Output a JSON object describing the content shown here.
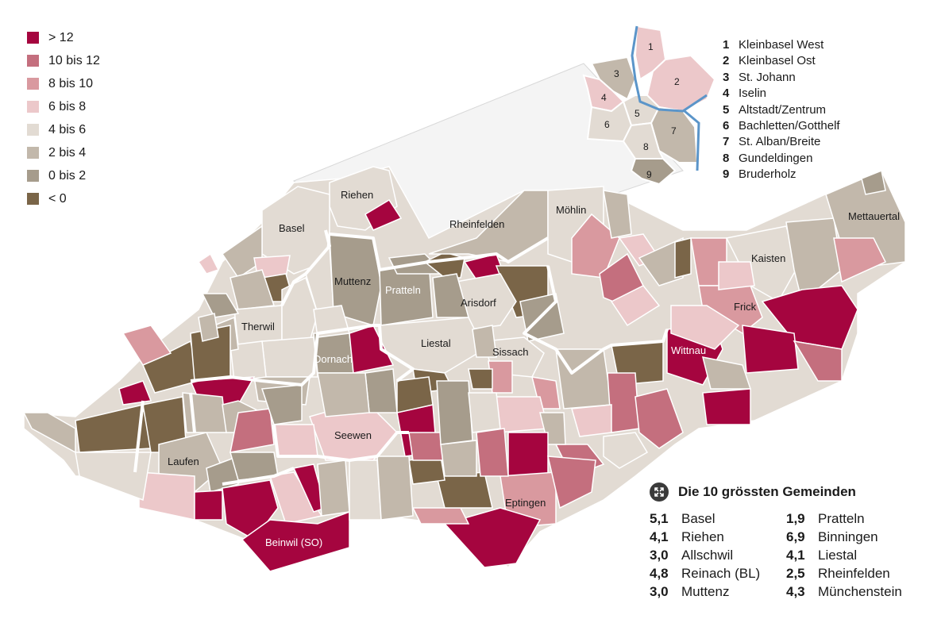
{
  "legend": [
    {
      "label": "> 12",
      "color": "#a5053f"
    },
    {
      "label": "10 bis 12",
      "color": "#c46f7e"
    },
    {
      "label": "8 bis 10",
      "color": "#d9999f"
    },
    {
      "label": "6 bis 8",
      "color": "#ecc8ca"
    },
    {
      "label": "4 bis 6",
      "color": "#e2dbd3"
    },
    {
      "label": "2 bis 4",
      "color": "#c2b8ab"
    },
    {
      "label": "0 bis 2",
      "color": "#a69c8c"
    },
    {
      "label": "< 0",
      "color": "#7a6548"
    }
  ],
  "districts": [
    {
      "num": "1",
      "name": "Kleinbasel West"
    },
    {
      "num": "2",
      "name": "Kleinbasel Ost"
    },
    {
      "num": "3",
      "name": "St. Johann"
    },
    {
      "num": "4",
      "name": "Iselin"
    },
    {
      "num": "5",
      "name": "Altstadt/Zentrum"
    },
    {
      "num": "6",
      "name": "Bachletten/Gotthelf"
    },
    {
      "num": "7",
      "name": "St. Alban/Breite"
    },
    {
      "num": "8",
      "name": "Gundeldingen"
    },
    {
      "num": "9",
      "name": "Bruderholz"
    }
  ],
  "largest": {
    "title": "Die 10 grössten Gemeinden",
    "items": [
      {
        "value": "5,1",
        "name": "Basel"
      },
      {
        "value": "1,9",
        "name": "Pratteln"
      },
      {
        "value": "4,1",
        "name": "Riehen"
      },
      {
        "value": "6,9",
        "name": "Binningen"
      },
      {
        "value": "3,0",
        "name": "Allschwil"
      },
      {
        "value": "4,1",
        "name": "Liestal"
      },
      {
        "value": "4,8",
        "name": "Reinach (BL)"
      },
      {
        "value": "2,5",
        "name": "Rheinfelden"
      },
      {
        "value": "3,0",
        "name": "Muttenz"
      },
      {
        "value": "4,3",
        "name": "Münchenstein"
      }
    ]
  },
  "map_labels": {
    "riehen": "Riehen",
    "basel": "Basel",
    "rheinfelden": "Rheinfelden",
    "moehlin": "Möhlin",
    "mettauertal": "Mettauertal",
    "kaisten": "Kaisten",
    "muttenz": "Muttenz",
    "pratteln": "Pratteln",
    "arisdorf": "Arisdorf",
    "frick": "Frick",
    "therwil": "Therwil",
    "liestal": "Liestal",
    "dornach": "Dornach",
    "sissach": "Sissach",
    "wittnau": "Wittnau",
    "seewen": "Seewen",
    "laufen": "Laufen",
    "eptingen": "Eptingen",
    "beinwil": "Beinwil (SO)"
  },
  "inset_numbers": [
    "1",
    "2",
    "3",
    "4",
    "5",
    "6",
    "7",
    "8",
    "9"
  ],
  "icons": {
    "largest": "expand-arrows-icon"
  },
  "colors": {
    "river": "#5b95c9",
    "border": "#ffffff"
  }
}
